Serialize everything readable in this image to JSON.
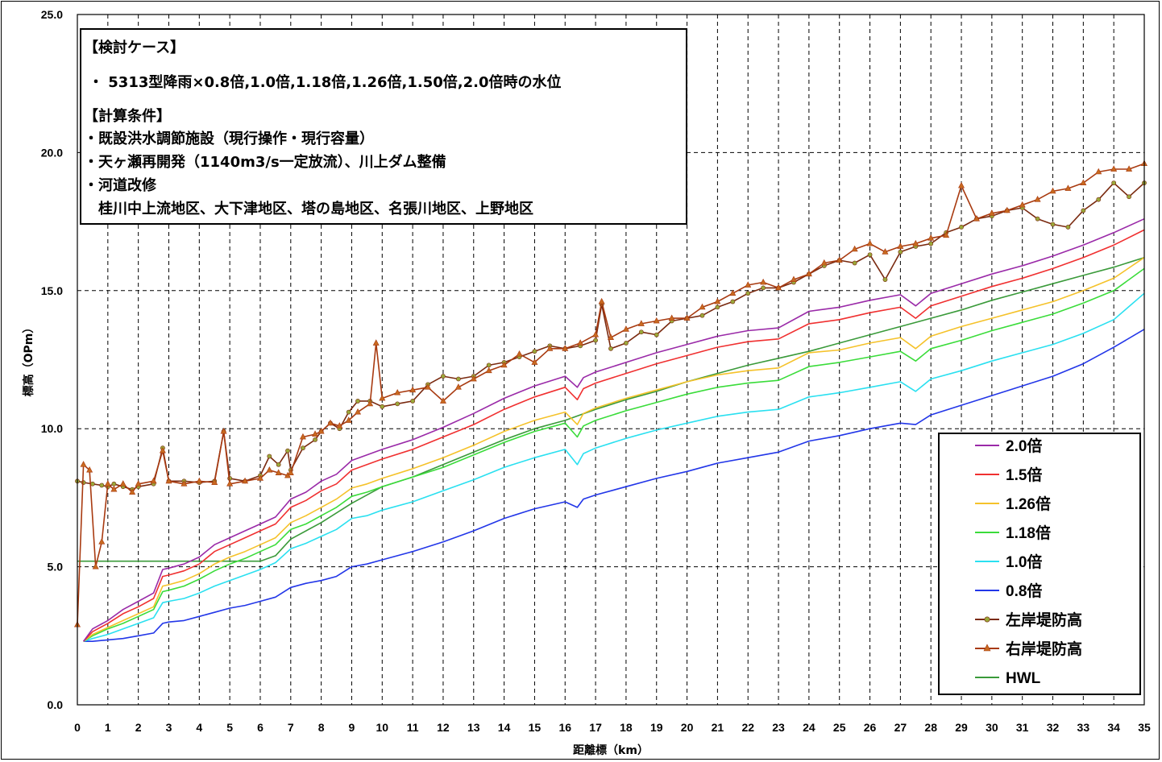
{
  "chart_data": {
    "type": "line",
    "xlabel": "距離標（km）",
    "ylabel": "標高（OPm）",
    "xlim": [
      0,
      35
    ],
    "ylim": [
      0,
      25
    ],
    "x_ticks": [
      "0",
      "1",
      "2",
      "3",
      "4",
      "5",
      "6",
      "7",
      "8",
      "9",
      "10",
      "11",
      "12",
      "13",
      "14",
      "15",
      "16",
      "17",
      "18",
      "19",
      "20",
      "21",
      "22",
      "23",
      "24",
      "25",
      "26",
      "27",
      "28",
      "29",
      "30",
      "31",
      "32",
      "33",
      "34",
      "35"
    ],
    "y_ticks": [
      "0.0",
      "5.0",
      "10.0",
      "15.0",
      "20.0",
      "25.0"
    ],
    "grid": true,
    "legend_position": "bottom-right",
    "annotation": {
      "lines": [
        "【検討ケース】",
        "・ 5313型降雨×0.8倍,1.0倍,1.18倍,1.26倍,1.50倍,2.0倍時の水位",
        "【計算条件】",
        "・既設洪水調節施設（現行操作・現行容量）",
        "・天ヶ瀬再開発（1140m3/s一定放流）、川上ダム整備",
        "・河道改修",
        "　桂川中上流地区、大下津地区、塔の島地区、名張川地区、上野地区"
      ]
    },
    "series": [
      {
        "name": "2.0倍",
        "color": "#9a2aa8",
        "marker": "none",
        "x": [
          0.2,
          0.5,
          1,
          1.5,
          2,
          2.5,
          2.8,
          3,
          3.5,
          4,
          4.5,
          5,
          5.5,
          6,
          6.5,
          7,
          7.5,
          8,
          8.5,
          9,
          9.5,
          10,
          11,
          12,
          13,
          14,
          15,
          16,
          16.4,
          16.6,
          17,
          18,
          19,
          20,
          21,
          22,
          23,
          24,
          25,
          26,
          27,
          27.5,
          28,
          29,
          30,
          31,
          32,
          33,
          34,
          35
        ],
        "y": [
          2.3,
          2.75,
          3.05,
          3.45,
          3.75,
          4.05,
          4.9,
          4.95,
          5.1,
          5.35,
          5.8,
          6.05,
          6.3,
          6.55,
          6.8,
          7.45,
          7.7,
          8.1,
          8.35,
          8.85,
          9.05,
          9.25,
          9.6,
          10.05,
          10.55,
          11.1,
          11.55,
          11.9,
          11.5,
          11.85,
          12.05,
          12.4,
          12.75,
          13.05,
          13.35,
          13.55,
          13.65,
          14.25,
          14.4,
          14.65,
          14.85,
          14.45,
          14.9,
          15.25,
          15.6,
          15.9,
          16.25,
          16.65,
          17.1,
          17.6
        ]
      },
      {
        "name": "1.5倍",
        "color": "#f03030",
        "marker": "none",
        "x": [
          0.2,
          0.5,
          1,
          1.5,
          2,
          2.5,
          2.8,
          3,
          3.5,
          4,
          4.5,
          5,
          5.5,
          6,
          6.5,
          7,
          7.5,
          8,
          8.5,
          9,
          9.5,
          10,
          11,
          12,
          13,
          14,
          15,
          16,
          16.4,
          16.6,
          17,
          18,
          19,
          20,
          21,
          22,
          23,
          24,
          25,
          26,
          27,
          27.5,
          28,
          29,
          30,
          31,
          32,
          33,
          34,
          35
        ],
        "y": [
          2.3,
          2.65,
          2.95,
          3.3,
          3.55,
          3.85,
          4.65,
          4.7,
          4.85,
          5.1,
          5.55,
          5.8,
          6.05,
          6.3,
          6.55,
          7.15,
          7.4,
          7.75,
          8.0,
          8.5,
          8.7,
          8.9,
          9.25,
          9.7,
          10.15,
          10.7,
          11.15,
          11.5,
          11.05,
          11.45,
          11.65,
          12.0,
          12.35,
          12.65,
          12.95,
          13.15,
          13.25,
          13.8,
          13.95,
          14.2,
          14.4,
          14.0,
          14.45,
          14.8,
          15.15,
          15.45,
          15.8,
          16.2,
          16.65,
          17.2
        ]
      },
      {
        "name": "1.26倍",
        "color": "#f5c22a",
        "marker": "none",
        "x": [
          0.2,
          0.5,
          1,
          1.5,
          2,
          2.5,
          2.8,
          3,
          3.5,
          4,
          4.5,
          5,
          5.5,
          6,
          6.5,
          7,
          7.5,
          8,
          8.5,
          9,
          9.5,
          10,
          11,
          12,
          13,
          14,
          15,
          16,
          16.4,
          16.6,
          17,
          18,
          19,
          20,
          21,
          22,
          23,
          24,
          25,
          26,
          27,
          27.5,
          28,
          29,
          30,
          31,
          32,
          33,
          34,
          35
        ],
        "y": [
          2.3,
          2.55,
          2.8,
          3.05,
          3.3,
          3.55,
          4.3,
          4.35,
          4.5,
          4.75,
          5.1,
          5.35,
          5.55,
          5.8,
          6.05,
          6.6,
          6.85,
          7.15,
          7.45,
          7.85,
          8.0,
          8.2,
          8.55,
          8.95,
          9.4,
          9.9,
          10.3,
          10.6,
          10.15,
          10.55,
          10.75,
          11.1,
          11.4,
          11.7,
          11.95,
          12.1,
          12.2,
          12.75,
          12.85,
          13.1,
          13.3,
          12.9,
          13.35,
          13.7,
          14.0,
          14.3,
          14.6,
          15.0,
          15.45,
          16.2
        ]
      },
      {
        "name": "1.18倍",
        "color": "#3adc3a",
        "marker": "none",
        "x": [
          0.2,
          0.5,
          1,
          1.5,
          2,
          2.5,
          2.8,
          3,
          3.5,
          4,
          4.5,
          5,
          5.5,
          6,
          6.5,
          7,
          7.5,
          8,
          8.5,
          9,
          9.5,
          10,
          11,
          12,
          13,
          14,
          15,
          16,
          16.4,
          16.6,
          17,
          18,
          19,
          20,
          21,
          22,
          23,
          24,
          25,
          26,
          27,
          27.5,
          28,
          29,
          30,
          31,
          32,
          33,
          34,
          35
        ],
        "y": [
          2.3,
          2.5,
          2.75,
          2.95,
          3.2,
          3.45,
          4.1,
          4.15,
          4.3,
          4.55,
          4.85,
          5.1,
          5.3,
          5.55,
          5.8,
          6.35,
          6.55,
          6.85,
          7.15,
          7.55,
          7.7,
          7.9,
          8.25,
          8.6,
          9.05,
          9.5,
          9.9,
          10.2,
          9.7,
          10.1,
          10.3,
          10.65,
          10.95,
          11.25,
          11.5,
          11.65,
          11.75,
          12.25,
          12.4,
          12.6,
          12.8,
          12.45,
          12.9,
          13.2,
          13.55,
          13.85,
          14.15,
          14.55,
          15.0,
          15.8
        ]
      },
      {
        "name": "1.0倍",
        "color": "#2ae0f0",
        "marker": "none",
        "x": [
          0.2,
          0.5,
          1,
          1.5,
          2,
          2.5,
          2.8,
          3,
          3.5,
          4,
          4.5,
          5,
          5.5,
          6,
          6.5,
          7,
          7.5,
          8,
          8.5,
          9,
          9.5,
          10,
          11,
          12,
          13,
          14,
          15,
          16,
          16.4,
          16.6,
          17,
          18,
          19,
          20,
          21,
          22,
          23,
          24,
          25,
          26,
          27,
          27.5,
          28,
          29,
          30,
          31,
          32,
          33,
          34,
          35
        ],
        "y": [
          2.3,
          2.4,
          2.55,
          2.75,
          2.95,
          3.15,
          3.7,
          3.75,
          3.85,
          4.05,
          4.3,
          4.5,
          4.7,
          4.9,
          5.15,
          5.65,
          5.85,
          6.1,
          6.35,
          6.75,
          6.85,
          7.05,
          7.35,
          7.75,
          8.15,
          8.6,
          8.95,
          9.25,
          8.7,
          9.1,
          9.3,
          9.65,
          9.95,
          10.2,
          10.45,
          10.6,
          10.7,
          11.15,
          11.3,
          11.5,
          11.7,
          11.35,
          11.8,
          12.1,
          12.45,
          12.75,
          13.05,
          13.45,
          13.95,
          14.9
        ]
      },
      {
        "name": "0.8倍",
        "color": "#2236e8",
        "marker": "none",
        "x": [
          0.2,
          0.5,
          1,
          1.5,
          2,
          2.5,
          2.8,
          3,
          3.5,
          4,
          4.5,
          5,
          5.5,
          6,
          6.5,
          7,
          7.5,
          8,
          8.5,
          9,
          9.5,
          10,
          11,
          12,
          13,
          14,
          15,
          16,
          16.4,
          16.6,
          17,
          18,
          19,
          20,
          21,
          22,
          23,
          24,
          25,
          26,
          27,
          27.5,
          28,
          29,
          30,
          31,
          32,
          33,
          34,
          35
        ],
        "y": [
          2.3,
          2.3,
          2.35,
          2.4,
          2.5,
          2.6,
          2.95,
          3.0,
          3.05,
          3.2,
          3.35,
          3.5,
          3.6,
          3.75,
          3.9,
          4.25,
          4.4,
          4.5,
          4.65,
          5.0,
          5.1,
          5.25,
          5.55,
          5.9,
          6.3,
          6.75,
          7.1,
          7.35,
          7.15,
          7.45,
          7.6,
          7.9,
          8.2,
          8.45,
          8.75,
          8.95,
          9.15,
          9.55,
          9.75,
          10.0,
          10.2,
          10.15,
          10.5,
          10.85,
          11.2,
          11.55,
          11.9,
          12.35,
          12.95,
          13.6
        ]
      },
      {
        "name": "左岸堤防高",
        "color": "#7a2a10",
        "marker": "circle",
        "marker_color": "#9aa83a",
        "x": [
          0,
          0.2,
          0.5,
          0.8,
          1,
          1.2,
          1.5,
          1.8,
          2,
          2.5,
          2.8,
          3,
          3.5,
          4,
          4.5,
          4.8,
          5,
          5.5,
          6,
          6.3,
          6.6,
          6.9,
          7,
          7.4,
          7.8,
          8,
          8.3,
          8.6,
          8.9,
          9.2,
          9.6,
          10,
          10.5,
          11,
          11.5,
          12,
          12.5,
          13,
          13.5,
          14,
          14.5,
          15,
          15.5,
          16,
          16.5,
          17,
          17.2,
          17.5,
          18,
          18.5,
          19,
          19.5,
          20,
          20.5,
          21,
          21.5,
          22,
          22.5,
          23,
          23.5,
          24,
          24.5,
          25,
          25.5,
          26,
          26.5,
          27,
          27.5,
          28,
          28.5,
          29,
          29.5,
          30,
          30.5,
          31,
          31.5,
          32,
          32.5,
          33,
          33.5,
          34,
          34.5,
          35
        ],
        "y": [
          8.1,
          8.05,
          8.0,
          7.95,
          7.9,
          8.0,
          7.9,
          7.8,
          7.9,
          8.0,
          9.3,
          8.1,
          8.1,
          8.05,
          8.1,
          9.9,
          8.2,
          8.1,
          8.3,
          9.0,
          8.7,
          9.2,
          8.5,
          9.3,
          9.6,
          9.9,
          10.2,
          10.0,
          10.6,
          11.0,
          11.0,
          10.8,
          10.9,
          11.0,
          11.6,
          11.9,
          11.8,
          11.9,
          12.3,
          12.4,
          12.6,
          12.8,
          13.0,
          12.9,
          13.0,
          13.2,
          14.5,
          12.9,
          13.1,
          13.5,
          13.4,
          13.9,
          14.0,
          14.1,
          14.4,
          14.6,
          14.9,
          15.1,
          15.1,
          15.3,
          15.6,
          15.9,
          16.1,
          16.0,
          16.3,
          15.4,
          16.4,
          16.6,
          16.7,
          17.1,
          17.3,
          17.6,
          17.7,
          17.9,
          18.0,
          17.6,
          17.4,
          17.3,
          17.9,
          18.3,
          18.9,
          18.4,
          18.9
        ]
      },
      {
        "name": "右岸堤防高",
        "color": "#a83a10",
        "marker": "triangle",
        "marker_color": "#c86a20",
        "x": [
          0,
          0.2,
          0.4,
          0.6,
          0.8,
          1,
          1.2,
          1.5,
          1.8,
          2,
          2.5,
          2.8,
          3,
          3.5,
          4,
          4.5,
          4.8,
          5,
          5.5,
          6,
          6.3,
          6.6,
          6.9,
          7,
          7.4,
          7.8,
          8,
          8.3,
          8.6,
          8.9,
          9.2,
          9.6,
          9.8,
          10,
          10.5,
          11,
          11.5,
          12,
          12.5,
          13,
          13.5,
          14,
          14.5,
          15,
          15.5,
          16,
          16.5,
          17,
          17.2,
          17.5,
          18,
          18.5,
          19,
          19.5,
          20,
          20.5,
          21,
          21.5,
          22,
          22.5,
          23,
          23.5,
          24,
          24.5,
          25,
          25.5,
          26,
          26.5,
          27,
          27.5,
          28,
          28.5,
          29,
          29.5,
          30,
          30.5,
          31,
          31.5,
          32,
          32.5,
          33,
          33.5,
          34,
          34.5,
          35
        ],
        "y": [
          2.9,
          8.7,
          8.5,
          5.0,
          5.9,
          8.0,
          7.8,
          8.0,
          7.7,
          8.0,
          8.1,
          9.2,
          8.1,
          8.0,
          8.1,
          8.05,
          9.9,
          8.0,
          8.1,
          8.2,
          8.5,
          8.4,
          8.3,
          8.4,
          9.7,
          9.8,
          9.9,
          10.2,
          10.1,
          10.3,
          10.6,
          10.9,
          13.1,
          11.1,
          11.3,
          11.4,
          11.5,
          11.0,
          11.5,
          11.8,
          12.1,
          12.3,
          12.7,
          12.4,
          12.9,
          12.9,
          13.1,
          13.4,
          14.6,
          13.3,
          13.6,
          13.8,
          13.9,
          14.0,
          14.0,
          14.4,
          14.6,
          14.9,
          15.2,
          15.3,
          15.1,
          15.4,
          15.6,
          16.0,
          16.1,
          16.5,
          16.7,
          16.4,
          16.6,
          16.7,
          16.9,
          17.0,
          18.8,
          17.6,
          17.8,
          17.9,
          18.1,
          18.3,
          18.6,
          18.7,
          18.9,
          19.3,
          19.4,
          19.4,
          19.6
        ]
      },
      {
        "name": "HWL",
        "color": "#3a9a3a",
        "marker": "none",
        "x": [
          0,
          0.5,
          1,
          2,
          3,
          4,
          5,
          6,
          6.5,
          7,
          8,
          9,
          10,
          11,
          12,
          13,
          14,
          15,
          16,
          17,
          18,
          19,
          20,
          21,
          22,
          23,
          24,
          25,
          26,
          27,
          28,
          29,
          30,
          31,
          32,
          33,
          34,
          35
        ],
        "y": [
          5.2,
          5.2,
          5.2,
          5.2,
          5.2,
          5.2,
          5.2,
          5.2,
          5.4,
          6.0,
          6.6,
          7.3,
          7.9,
          8.25,
          8.7,
          9.15,
          9.6,
          10.0,
          10.3,
          10.7,
          11.05,
          11.35,
          11.7,
          12.0,
          12.3,
          12.55,
          12.8,
          13.1,
          13.4,
          13.7,
          14.0,
          14.3,
          14.65,
          14.95,
          15.25,
          15.55,
          15.85,
          16.2
        ]
      }
    ]
  }
}
